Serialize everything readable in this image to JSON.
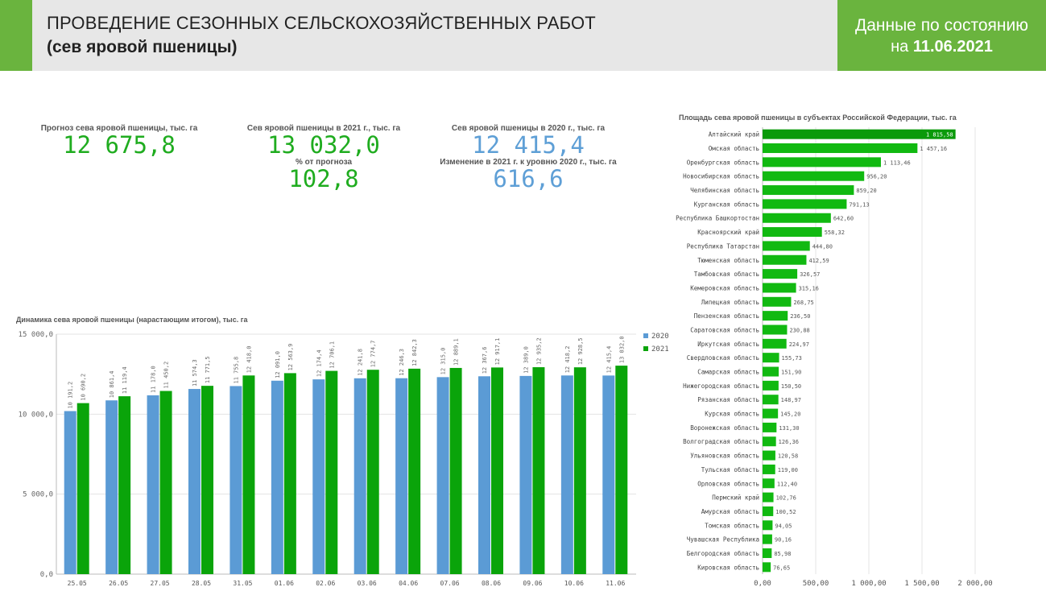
{
  "header": {
    "title_line1": "ПРОВЕДЕНИЕ СЕЗОННЫХ СЕЛЬСКОХОЗЯЙСТВЕННЫХ РАБОТ",
    "title_line2": "(сев яровой пшеницы)",
    "date_line1": "Данные по состоянию",
    "date_prefix": "на ",
    "date_value": "11.06.2021"
  },
  "kpis": {
    "forecast_label": "Прогноз сева яровой пшеницы, тыс. га",
    "forecast_value": "12 675,8",
    "sown2021_label": "Сев яровой пшеницы в 2021 г., тыс. га",
    "sown2021_value": "13 032,0",
    "pct_label": "% от прогноза",
    "pct_value": "102,8",
    "sown2020_label": "Сев яровой пшеницы в 2020 г., тыс. га",
    "sown2020_value": "12 415,4",
    "change_label": "Изменение в 2021 г. к уровню 2020 г., тыс. га",
    "change_value": "616,6"
  },
  "colors": {
    "green": "#1fac1f",
    "blue": "#5e9fd6",
    "bar2020": "#5b9bd5",
    "bar2021": "#0aa40a",
    "hbar": "#11b911",
    "hbar_top": "#0a9a0a",
    "header_accent": "#6ab43e"
  },
  "chart_data": [
    {
      "type": "bar",
      "title": "Динамика сева яровой пшеницы (нарастающим итогом), тыс. га",
      "categories": [
        "25.05",
        "26.05",
        "27.05",
        "28.05",
        "31.05",
        "01.06",
        "02.06",
        "03.06",
        "04.06",
        "07.06",
        "08.06",
        "09.06",
        "10.06",
        "11.06"
      ],
      "series": [
        {
          "name": "2020",
          "values": [
            10191.2,
            10861.4,
            11178.0,
            11574.3,
            11755.8,
            12091.0,
            12174.4,
            12241.8,
            12246.3,
            12315.0,
            12367.6,
            12389.0,
            12418.2,
            12415.4
          ],
          "labels": [
            "10 191,2",
            "10 861,4",
            "11 178,0",
            "11 574,3",
            "11 755,8",
            "12 091,0",
            "12 174,4",
            "12 241,8",
            "12 246,3",
            "12 315,0",
            "12 367,6",
            "12 389,0",
            "12 418,2",
            "12 415,4"
          ]
        },
        {
          "name": "2021",
          "values": [
            10690.2,
            11119.4,
            11450.2,
            11771.5,
            12418.0,
            12563.9,
            12706.1,
            12774.7,
            12842.3,
            12889.1,
            12917.1,
            12935.2,
            12928.5,
            13032.0
          ],
          "labels": [
            "10 690,2",
            "11 119,4",
            "11 450,2",
            "11 771,5",
            "12 418,0",
            "12 563,9",
            "12 706,1",
            "12 774,7",
            "12 842,3",
            "12 889,1",
            "12 917,1",
            "12 935,2",
            "12 928,5",
            "13 032,0"
          ]
        }
      ],
      "ylim": [
        0,
        15000
      ],
      "yticks": [
        "0,0",
        "5 000,0",
        "10 000,0",
        "15 000,0"
      ],
      "yticks_values": [
        0,
        5000,
        10000,
        15000
      ],
      "legend": "top-right",
      "grid": true
    },
    {
      "type": "bar",
      "orientation": "horizontal",
      "title": "Площадь сева яровой пшеницы в субъектах Российской Федерации, тыс. га",
      "categories": [
        "Алтайский край",
        "Омская область",
        "Оренбургская область",
        "Новосибирская область",
        "Челябинская область",
        "Курганская область",
        "Республика Башкортостан",
        "Красноярский край",
        "Республика Татарстан",
        "Тюменская область",
        "Тамбовская область",
        "Кемеровская область",
        "Липецкая область",
        "Пензенская область",
        "Саратовская область",
        "Иркутская область",
        "Свердловская область",
        "Самарская область",
        "Нижегородская область",
        "Рязанская область",
        "Курская область",
        "Воронежская область",
        "Волгоградская область",
        "Ульяновская область",
        "Тульская область",
        "Орловская область",
        "Пермский край",
        "Амурская область",
        "Томская область",
        "Чувашская Республика",
        "Белгородская область",
        "Кировская область"
      ],
      "values": [
        1815.58,
        1457.16,
        1113.46,
        956.2,
        859.2,
        791.13,
        642.6,
        558.32,
        444.8,
        412.59,
        326.57,
        315.16,
        268.75,
        236.5,
        230.88,
        224.97,
        155.73,
        151.9,
        150.5,
        148.97,
        145.2,
        131.3,
        126.36,
        120.58,
        119.0,
        112.4,
        102.76,
        100.52,
        94.05,
        90.16,
        85.98,
        76.65
      ],
      "labels": [
        "1 815,58",
        "1 457,16",
        "1 113,46",
        "956,20",
        "859,20",
        "791,13",
        "642,60",
        "558,32",
        "444,80",
        "412,59",
        "326,57",
        "315,16",
        "268,75",
        "236,50",
        "230,88",
        "224,97",
        "155,73",
        "151,90",
        "150,50",
        "148,97",
        "145,20",
        "131,30",
        "126,36",
        "120,58",
        "119,00",
        "112,40",
        "102,76",
        "100,52",
        "94,05",
        "90,16",
        "85,98",
        "76,65"
      ],
      "xlim": [
        0,
        2000
      ],
      "xticks": [
        "0,00",
        "500,00",
        "1 000,00",
        "1 500,00",
        "2 000,00"
      ],
      "xticks_values": [
        0,
        500,
        1000,
        1500,
        2000
      ],
      "grid": true
    }
  ]
}
